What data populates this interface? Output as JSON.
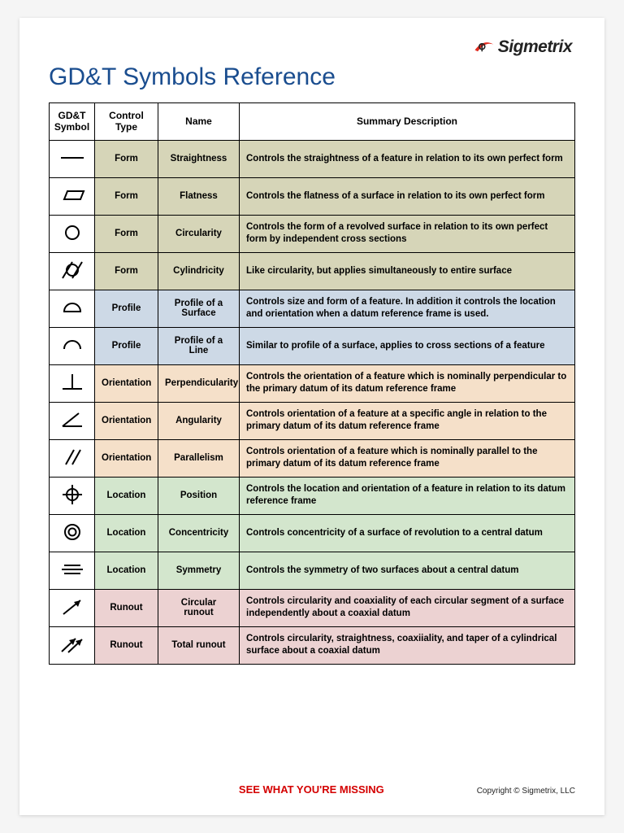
{
  "brand": {
    "name": "Sigmetrix",
    "swoosh_color": "#e22b1f",
    "text_color": "#222222"
  },
  "title": "GD&T Symbols Reference",
  "title_color": "#1a4d8f",
  "columns": [
    "GD&T Symbol",
    "Control Type",
    "Name",
    "Summary Description"
  ],
  "group_colors": {
    "Form": "#d6d5b8",
    "Profile": "#cdd9e6",
    "Orientation": "#f5e0c9",
    "Location": "#d3e6cd",
    "Runout": "#ecd2d2"
  },
  "symbol_stroke": "#000000",
  "symbol_bg": "#ffffff",
  "border_color": "#000000",
  "rows": [
    {
      "symbol": "straightness",
      "type": "Form",
      "name": "Straightness",
      "desc": "Controls the straightness of a feature in relation to its own perfect form"
    },
    {
      "symbol": "flatness",
      "type": "Form",
      "name": "Flatness",
      "desc": "Controls the flatness of a surface in relation to its own perfect form"
    },
    {
      "symbol": "circularity",
      "type": "Form",
      "name": "Circularity",
      "desc": "Controls the form of a revolved surface in relation to its own perfect form by independent cross sections"
    },
    {
      "symbol": "cylindricity",
      "type": "Form",
      "name": "Cylindricity",
      "desc": "Like circularity, but applies simultaneously to entire surface"
    },
    {
      "symbol": "profile-surface",
      "type": "Profile",
      "name": "Profile of a Surface",
      "desc": "Controls size and form of a feature.  In addition it controls the location and orientation when a datum reference frame is used."
    },
    {
      "symbol": "profile-line",
      "type": "Profile",
      "name": "Profile of a Line",
      "desc": "Similar to profile of a surface, applies to cross sections of a feature"
    },
    {
      "symbol": "perpendicularity",
      "type": "Orientation",
      "name": "Perpendicularity",
      "desc": "Controls the orientation of a feature which is nominally perpendicular to the primary datum of its datum reference frame"
    },
    {
      "symbol": "angularity",
      "type": "Orientation",
      "name": "Angularity",
      "desc": "Controls orientation of a feature at a specific angle in relation to the primary datum of its datum reference frame"
    },
    {
      "symbol": "parallelism",
      "type": "Orientation",
      "name": "Parallelism",
      "desc": "Controls orientation of a feature which is nominally parallel to the primary datum of its datum reference frame"
    },
    {
      "symbol": "position",
      "type": "Location",
      "name": "Position",
      "desc": "Controls the location and orientation of a feature in relation to its datum reference frame"
    },
    {
      "symbol": "concentricity",
      "type": "Location",
      "name": "Concentricity",
      "desc": "Controls concentricity of a surface of revolution to a central datum"
    },
    {
      "symbol": "symmetry",
      "type": "Location",
      "name": "Symmetry",
      "desc": "Controls the symmetry of two surfaces about a central datum"
    },
    {
      "symbol": "circular-runout",
      "type": "Runout",
      "name": "Circular runout",
      "desc": "Controls circularity and coaxiality of each circular segment of a surface independently about a coaxial datum"
    },
    {
      "symbol": "total-runout",
      "type": "Runout",
      "name": "Total runout",
      "desc": "Controls circularity, straightness, coaxiiality, and taper of a cylindrical surface about a coaxial datum"
    }
  ],
  "footer": {
    "tagline": "SEE WHAT YOU'RE MISSING",
    "tagline_color": "#d40000",
    "copyright": "Copyright © Sigmetrix, LLC"
  }
}
